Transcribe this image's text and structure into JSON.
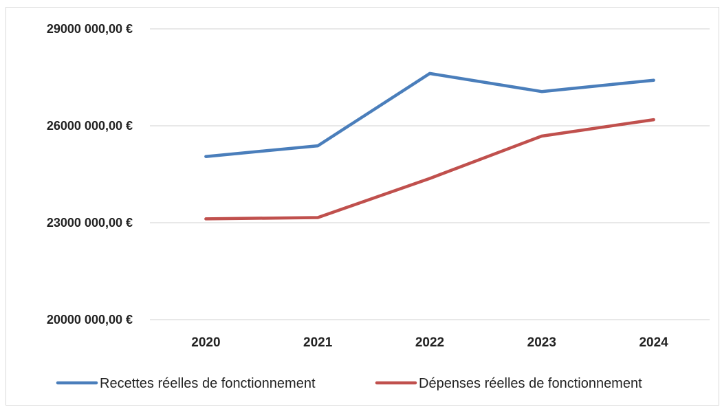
{
  "chart_data": {
    "type": "line",
    "categories": [
      "2020",
      "2021",
      "2022",
      "2023",
      "2024"
    ],
    "series": [
      {
        "name": "Recettes réelles de fonctionnement",
        "color": "#4a7ebb",
        "values": [
          25050000,
          25380000,
          27620000,
          27060000,
          27410000
        ]
      },
      {
        "name": "Dépenses réelles de fonctionnement",
        "color": "#c0504d",
        "values": [
          23120000,
          23160000,
          24370000,
          25680000,
          26190000
        ]
      }
    ],
    "ylim": [
      20000000,
      29000000
    ],
    "yticks": [
      20000000,
      23000000,
      26000000,
      29000000
    ],
    "ytick_labels": [
      "20000 000,00 €",
      "23000 000,00 €",
      "26000 000,00 €",
      "29000 000,00 €"
    ],
    "grid": true,
    "legend_position": "bottom",
    "title": "",
    "xlabel": "",
    "ylabel": ""
  }
}
